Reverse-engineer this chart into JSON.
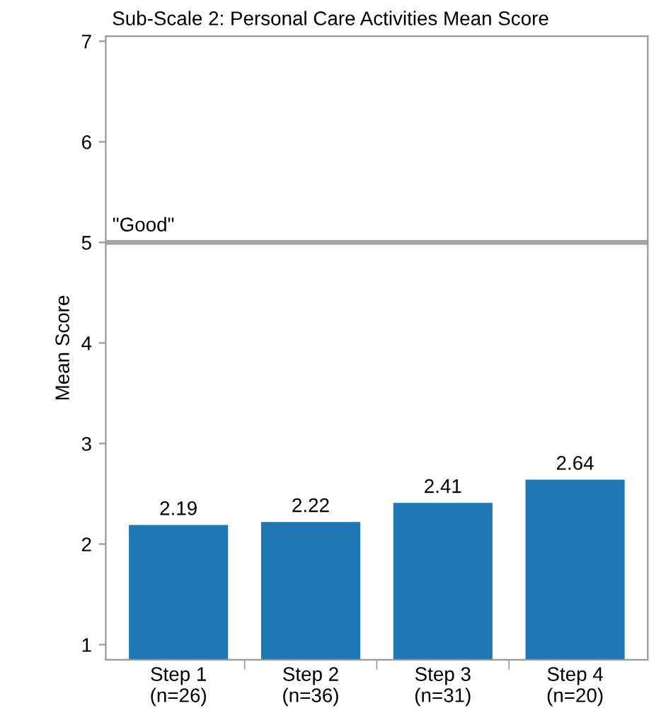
{
  "chart_data": {
    "type": "bar",
    "title": "Sub-Scale 2: Personal Care Activities Mean Score",
    "ylabel": "Mean Score",
    "categories": [
      "Step 1\n(n=26)",
      "Step 2\n(n=36)",
      "Step 3\n(n=31)",
      "Step 4\n(n=20)"
    ],
    "values": [
      2.19,
      2.22,
      2.41,
      2.64
    ],
    "color": "#1f77b4",
    "data_labels": true,
    "ylim": [
      0.85,
      7.05
    ],
    "yticks": [
      1,
      2,
      3,
      4,
      5,
      6,
      7
    ],
    "grid": false,
    "ref_lines": [
      {
        "axis": "y",
        "value": 5,
        "label": "\"Good\"",
        "color": "#a6a6a6"
      }
    ]
  }
}
